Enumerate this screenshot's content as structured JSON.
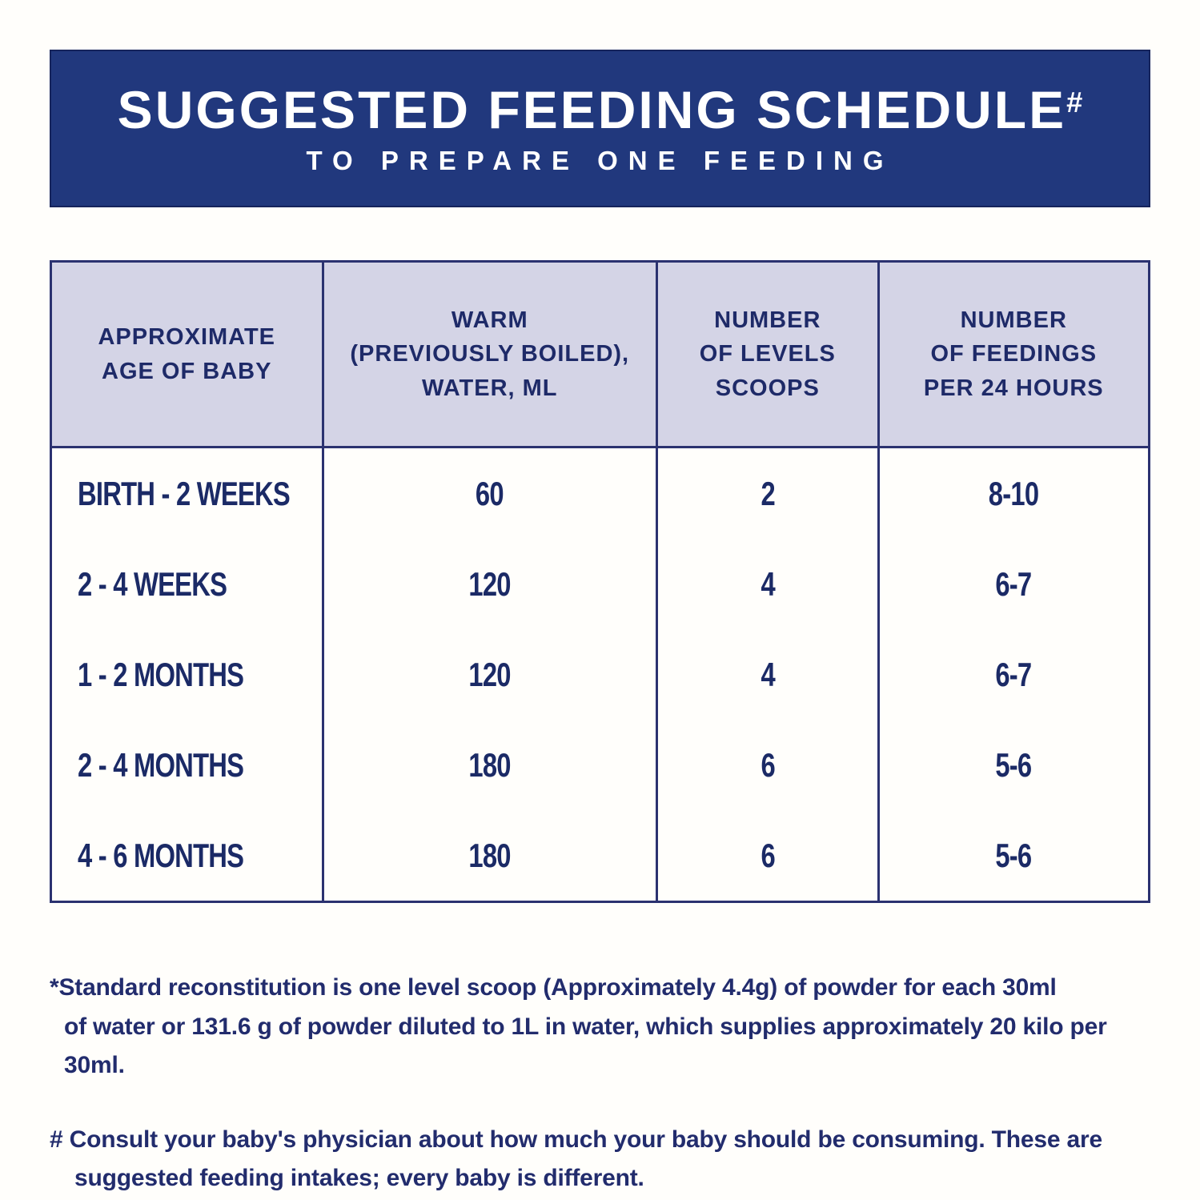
{
  "banner": {
    "title": "SUGGESTED FEEDING SCHEDULE",
    "title_mark": "#",
    "subtitle": "TO PREPARE ONE FEEDING"
  },
  "table": {
    "headers": [
      "APPROXIMATE\nAGE OF BABY",
      "WARM\n(PREVIOUSLY BOILED),\nWATER, ML",
      "NUMBER\nOF LEVELS\nSCOOPS",
      "NUMBER\nOF FEEDINGS\nPER 24 HOURS"
    ],
    "rows": [
      {
        "age": "BIRTH - 2 WEEKS",
        "water_ml": "60",
        "scoops": "2",
        "feedings_per_24h": "8-10"
      },
      {
        "age": "2 - 4 WEEKS",
        "water_ml": "120",
        "scoops": "4",
        "feedings_per_24h": "6-7"
      },
      {
        "age": "1 - 2 MONTHS",
        "water_ml": "120",
        "scoops": "4",
        "feedings_per_24h": "6-7"
      },
      {
        "age": "2 - 4 MONTHS",
        "water_ml": "180",
        "scoops": "6",
        "feedings_per_24h": "5-6"
      },
      {
        "age": "4 - 6 MONTHS",
        "water_ml": "180",
        "scoops": "6",
        "feedings_per_24h": "5-6"
      }
    ]
  },
  "footnotes": {
    "reconstitution": "*Standard reconstitution is one level scoop (Approximately 4.4g) of powder for each 30ml\nof water or 131.6 g of powder diluted to 1L in water, which supplies approximately 20 kilo per 30ml.",
    "physician": "# Consult your baby's physician about how much your baby should be consuming. These are\nsuggested feeding intakes; every baby is different."
  },
  "colors": {
    "banner_bg": "#21387d",
    "banner_text": "#ffffff",
    "header_cell_bg": "#d4d4e6",
    "table_border": "#2b3270",
    "text_navy": "#1c2a6b",
    "page_bg": "#fffefb"
  },
  "chart_data": {
    "type": "table",
    "title": "SUGGESTED FEEDING SCHEDULE#",
    "subtitle": "TO PREPARE ONE FEEDING",
    "columns": [
      "APPROXIMATE AGE OF BABY",
      "WARM (PREVIOUSLY BOILED), WATER, ML",
      "NUMBER OF LEVELS SCOOPS",
      "NUMBER OF FEEDINGS PER 24 HOURS"
    ],
    "rows": [
      [
        "BIRTH - 2 WEEKS",
        60,
        2,
        "8-10"
      ],
      [
        "2 - 4 WEEKS",
        120,
        4,
        "6-7"
      ],
      [
        "1 - 2 MONTHS",
        120,
        4,
        "6-7"
      ],
      [
        "2 - 4 MONTHS",
        180,
        6,
        "5-6"
      ],
      [
        "4 - 6 MONTHS",
        180,
        6,
        "5-6"
      ]
    ],
    "footnotes": [
      "*Standard reconstitution is one level scoop (Approximately 4.4g) of powder for each 30ml of water or 131.6 g of powder diluted to 1L in water, which supplies approximately 20 kilo per 30ml.",
      "# Consult your baby's physician about how much your baby should be consuming. These are suggested feeding intakes; every baby is different."
    ]
  }
}
